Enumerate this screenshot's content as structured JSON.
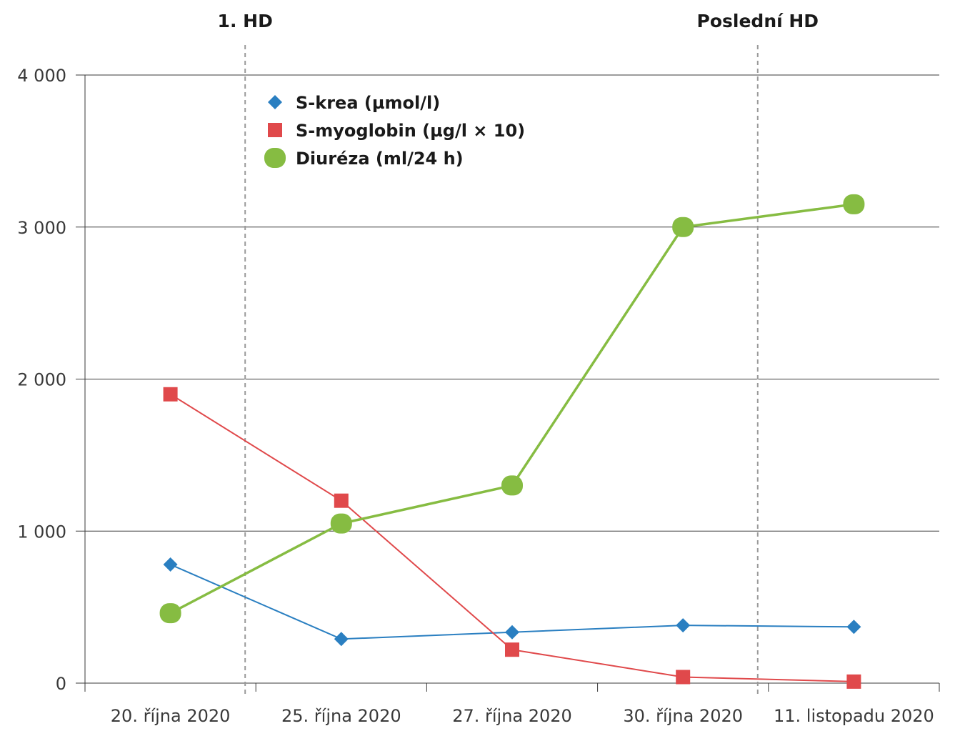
{
  "chart_data": {
    "type": "line",
    "categories": [
      "20. října 2020",
      "25. října 2020",
      "27. října 2020",
      "30. října 2020",
      "11. listopadu 2020"
    ],
    "y_tick_labels": [
      "0",
      "1 000",
      "2 000",
      "3 000",
      "4 000"
    ],
    "ylim": [
      0,
      4000
    ],
    "grid": true,
    "legend_position": "top-left",
    "vertical_markers": [
      {
        "label": "1. HD",
        "between": [
          0,
          1
        ]
      },
      {
        "label": "Poslední HD",
        "between": [
          3,
          4
        ]
      }
    ],
    "series": [
      {
        "name": "S-krea (µmol/l)",
        "marker": "diamond",
        "color": "#2a7fc1",
        "values": [
          780,
          290,
          335,
          380,
          370
        ]
      },
      {
        "name": "S-myoglobin (µg/l × 10)",
        "marker": "square",
        "color": "#e0494b",
        "values": [
          1900,
          1200,
          220,
          40,
          10
        ]
      },
      {
        "name": "Diuréza (ml/24 h)",
        "marker": "circle",
        "color": "#86bc42",
        "values": [
          460,
          1050,
          1300,
          3000,
          3150
        ]
      }
    ]
  }
}
